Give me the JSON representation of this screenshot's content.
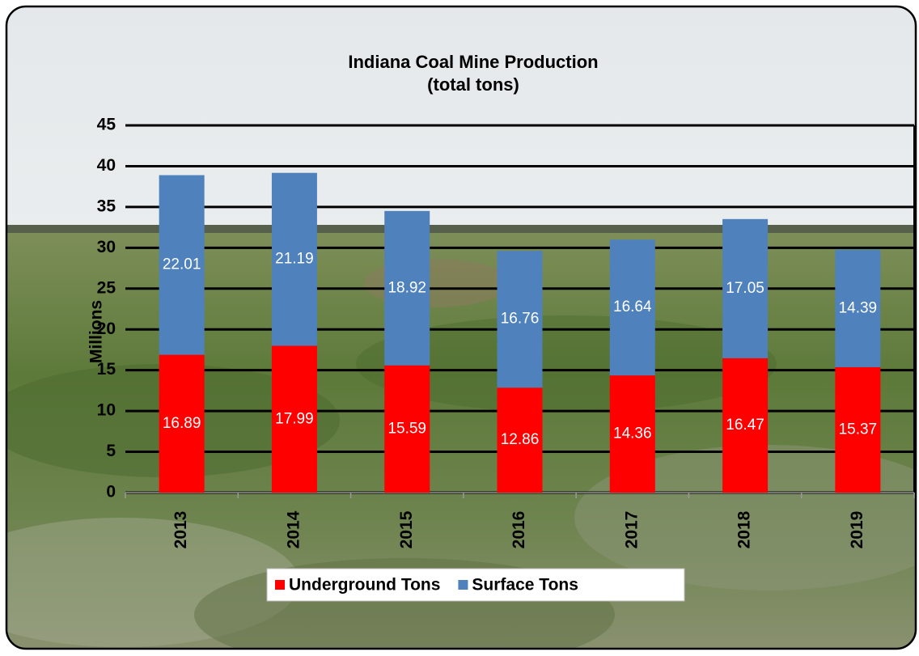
{
  "chart_data": {
    "type": "stacked_bar",
    "title": "Indiana Coal Mine Production",
    "subtitle": "(total tons)",
    "y_label": "Millions",
    "categories": [
      "2013",
      "2014",
      "2015",
      "2016",
      "2017",
      "2018",
      "2019"
    ],
    "series": [
      {
        "name": "Underground Tons",
        "color": "#ff0000",
        "values": [
          16.89,
          17.99,
          15.59,
          12.86,
          14.36,
          16.47,
          15.37
        ]
      },
      {
        "name": "Surface Tons",
        "color": "#4f81bd",
        "values": [
          22.01,
          21.19,
          18.92,
          16.76,
          16.64,
          17.05,
          14.39
        ]
      }
    ],
    "ylim": [
      0,
      45
    ],
    "yticks": [
      0,
      5,
      10,
      15,
      20,
      25,
      30,
      35,
      40,
      45
    ],
    "grid": true,
    "legend": "bottom"
  }
}
